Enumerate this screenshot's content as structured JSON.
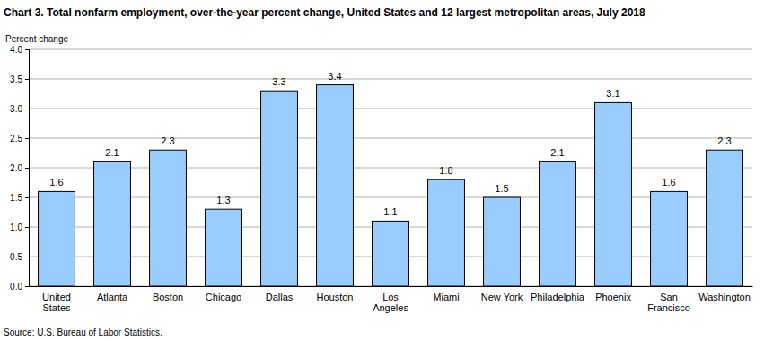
{
  "chart_data": {
    "type": "bar",
    "title": "Chart 3. Total nonfarm employment, over-the-year percent change, United States and 12 largest metropolitan areas, July 2018",
    "y_label": "Percent change",
    "source": "Source: U.S. Bureau of Labor Statistics.",
    "categories": [
      "United States",
      "Atlanta",
      "Boston",
      "Chicago",
      "Dallas",
      "Houston",
      "Los Angeles",
      "Miami",
      "New York",
      "Philadelphia",
      "Phoenix",
      "San Francisco",
      "Washington"
    ],
    "values": [
      1.6,
      2.1,
      2.3,
      1.3,
      3.3,
      3.4,
      1.1,
      1.8,
      1.5,
      2.1,
      3.1,
      1.6,
      2.3
    ],
    "color": "#99ccff",
    "ylim": [
      0,
      4
    ],
    "yticks": [
      {
        "value": 0,
        "label": "0.0"
      },
      {
        "value": 0.5,
        "label": "0.5"
      },
      {
        "value": 1,
        "label": "1.0"
      },
      {
        "value": 1.5,
        "label": "1.5"
      },
      {
        "value": 2,
        "label": "2.0"
      },
      {
        "value": 2.5,
        "label": "2.5"
      },
      {
        "value": 3,
        "label": "3.0"
      },
      {
        "value": 3.5,
        "label": "3.5"
      },
      {
        "value": 4,
        "label": "4.0"
      }
    ],
    "grid": true,
    "data_labels": true
  }
}
